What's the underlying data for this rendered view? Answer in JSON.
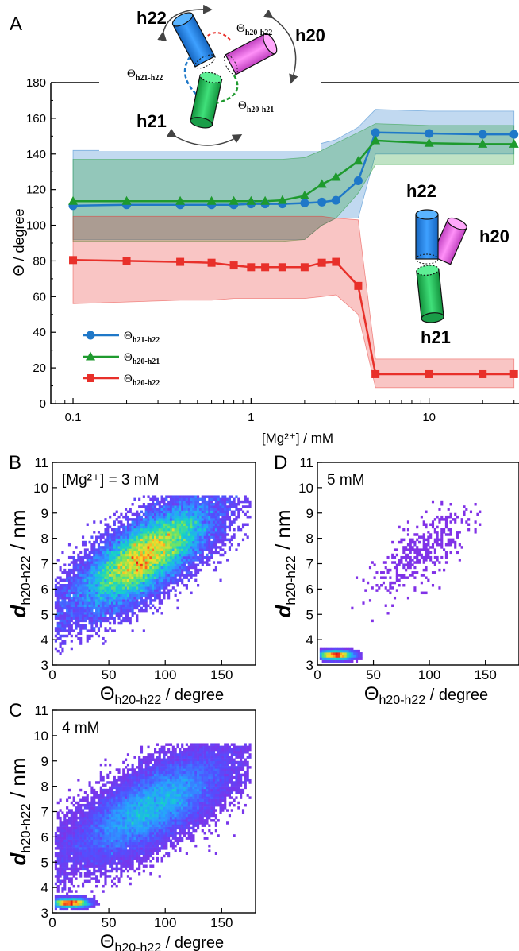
{
  "chart_data": [
    {
      "type": "line",
      "panel_label": "A",
      "x_scale": "log",
      "xlabel": "[Mg²⁺] / mM",
      "ylabel": "Θ / degree",
      "xlim": [
        0.075,
        32
      ],
      "ylim": [
        0,
        180
      ],
      "x_tick_labels": [
        "0.1",
        "1",
        "10"
      ],
      "y_tick_labels": [
        "0",
        "20",
        "40",
        "60",
        "80",
        "100",
        "120",
        "140",
        "160",
        "180"
      ],
      "x": [
        0.1,
        0.2,
        0.4,
        0.6,
        0.8,
        1.0,
        1.2,
        1.5,
        2.0,
        2.5,
        3.0,
        4.0,
        5.0,
        10.0,
        20.0,
        30.0
      ],
      "series": [
        {
          "name_main": "Θ",
          "name_sub": "h21-h22",
          "color": "#1f78c8",
          "marker": "circle",
          "values": [
            111,
            111.5,
            111.5,
            111.5,
            111.5,
            112,
            112,
            112,
            112.5,
            113,
            114,
            125,
            152,
            151.5,
            151,
            151
          ],
          "band_lower": [
            92,
            92,
            92,
            92,
            92,
            92,
            92,
            92,
            92,
            100,
            104,
            104,
            140,
            140,
            140,
            140
          ],
          "band_upper": [
            142,
            142,
            142,
            142,
            142,
            142,
            142,
            142,
            144,
            146,
            148,
            155,
            165,
            164,
            164,
            164
          ]
        },
        {
          "name_main": "Θ",
          "name_sub": "h20-h21",
          "color": "#1e9a2e",
          "marker": "triangle",
          "values": [
            113.5,
            113.5,
            113.5,
            113.5,
            113.5,
            113.5,
            113.5,
            114,
            116.5,
            123,
            127,
            136,
            147.5,
            146,
            145.5,
            145.5
          ],
          "band_lower": [
            91,
            91,
            91,
            91,
            91,
            91,
            91,
            91,
            92,
            100,
            104,
            118,
            134,
            134,
            134,
            134
          ],
          "band_upper": [
            137,
            137,
            137,
            137,
            137,
            137,
            137,
            137,
            138,
            142,
            146,
            152,
            157,
            156,
            156,
            156
          ]
        },
        {
          "name_main": "Θ",
          "name_sub": "h20-h22",
          "color": "#e8302a",
          "marker": "square",
          "values": [
            80.5,
            80,
            79.5,
            79,
            77.5,
            76.5,
            76.5,
            76.5,
            76.5,
            79,
            79.5,
            66,
            16.5,
            16.5,
            16.5,
            16.5
          ],
          "band_lower": [
            56,
            57,
            58,
            58,
            59,
            59,
            59,
            59,
            59,
            60,
            61,
            50,
            9,
            9,
            9,
            9
          ],
          "band_upper": [
            105,
            105,
            105,
            105,
            105,
            105,
            105,
            105,
            105,
            105,
            104,
            103,
            25,
            25,
            25,
            25
          ]
        }
      ],
      "annotations": {
        "top_schematic": {
          "helix_labels": [
            "h22",
            "h20",
            "h21"
          ],
          "helix_colors": [
            "#1e8ae6",
            "#ee6ce8",
            "#25c45a"
          ],
          "angle_labels": [
            {
              "main": "Θ",
              "sub": "h20-h22"
            },
            {
              "main": "Θ",
              "sub": "h21-h22"
            },
            {
              "main": "Θ",
              "sub": "h20-h21"
            }
          ]
        },
        "right_schematic": {
          "helix_labels": [
            "h22",
            "h20",
            "h21"
          ]
        }
      }
    },
    {
      "type": "heatmap",
      "panel_label": "B",
      "annotation": "[Mg²⁺] = 3 mM",
      "xlabel_main": "Θ",
      "xlabel_sub": "h20-h22",
      "xlabel_unit": " / degree",
      "ylabel_main": "d",
      "ylabel_sub": "h20-h22",
      "ylabel_unit": " / nm",
      "xlim": [
        0,
        180
      ],
      "ylim": [
        3,
        11
      ],
      "x_tick_labels": [
        "0",
        "50",
        "100",
        "150"
      ],
      "y_tick_labels": [
        "3",
        "4",
        "5",
        "6",
        "7",
        "8",
        "9",
        "10",
        "11"
      ],
      "peak": [
        80,
        7.6
      ]
    },
    {
      "type": "heatmap",
      "panel_label": "C",
      "annotation": "4 mM",
      "xlabel_main": "Θ",
      "xlabel_sub": "h20-h22",
      "xlabel_unit": " / degree",
      "ylabel_main": "d",
      "ylabel_sub": "h20-h22",
      "ylabel_unit": " / nm",
      "xlim": [
        0,
        180
      ],
      "ylim": [
        3,
        11
      ],
      "x_tick_labels": [
        "0",
        "50",
        "100",
        "150"
      ],
      "y_tick_labels": [
        "3",
        "4",
        "5",
        "6",
        "7",
        "8",
        "9",
        "10",
        "11"
      ],
      "peaks": [
        [
          90,
          7.4
        ],
        [
          15,
          3.4
        ]
      ]
    },
    {
      "type": "heatmap",
      "panel_label": "D",
      "annotation": "5 mM",
      "xlabel_main": "Θ",
      "xlabel_sub": "h20-h22",
      "xlabel_unit": " / degree",
      "ylabel_main": "d",
      "ylabel_sub": "h20-h22",
      "ylabel_unit": " / nm",
      "xlim": [
        0,
        180
      ],
      "ylim": [
        3,
        11
      ],
      "x_tick_labels": [
        "0",
        "50",
        "100",
        "150"
      ],
      "y_tick_labels": [
        "3",
        "4",
        "5",
        "6",
        "7",
        "8",
        "9",
        "10",
        "11"
      ],
      "peak": [
        15,
        3.4
      ]
    }
  ]
}
